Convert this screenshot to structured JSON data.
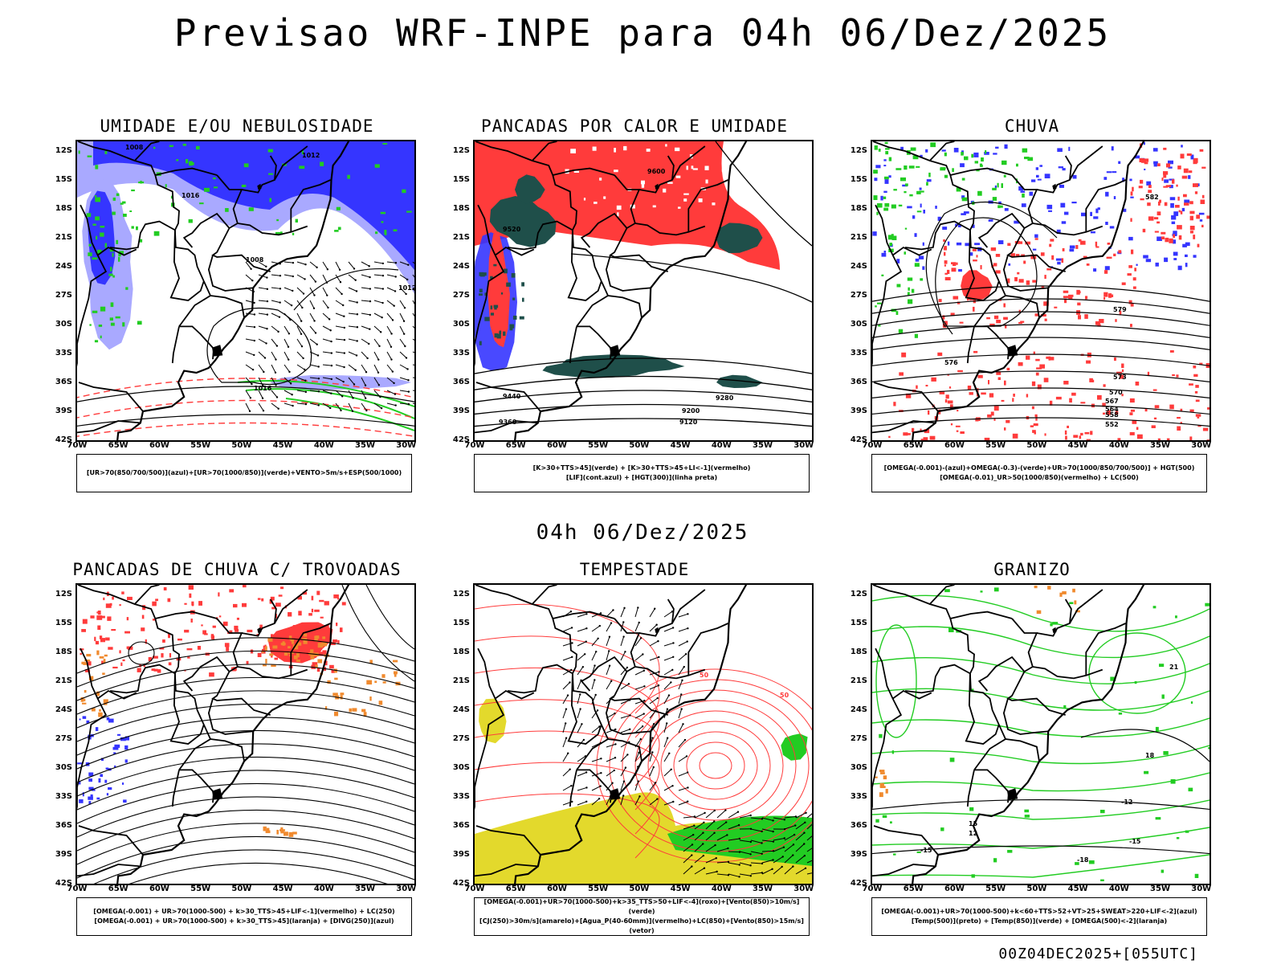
{
  "title": "Previsao WRF-INPE  para 04h 06/Dez/2025",
  "subtitle": "04h 06/Dez/2025",
  "footer": "00Z04DEC2025+[055UTC]",
  "lat_labels": [
    "12S",
    "15S",
    "18S",
    "21S",
    "24S",
    "27S",
    "30S",
    "33S",
    "36S",
    "39S",
    "42S"
  ],
  "lon_labels": [
    "70W",
    "65W",
    "60W",
    "55W",
    "50W",
    "45W",
    "40W",
    "35W",
    "30W"
  ],
  "colors": {
    "blue": "#3535ff",
    "lightblue": "#a9a9ff",
    "green": "#22cc22",
    "red": "#ff3b3b",
    "darkteal": "#1f4f4a",
    "orange": "#f08a2e",
    "yellow": "#e3d92c"
  },
  "panels": [
    {
      "title": "UMIDADE E/OU NEBULOSIDADE",
      "legend": [
        "[UR>70(850/700/500)](azul)+[UR>70(1000/850)](verde)+VENTO>5m/s+ESP(500/1000)"
      ],
      "contour_labels": [
        "1008",
        "1012",
        "1016",
        "1008",
        "1012",
        "1016"
      ]
    },
    {
      "title": "PANCADAS POR CALOR E UMIDADE",
      "legend": [
        "[K>30+TTS>45](verde) + [K>30+TTS>45+LI<-1](vermelho)",
        "[LIF](cont.azul) + [HGT(300)](linha preta)"
      ],
      "contour_labels": [
        "9600",
        "9520",
        "9440",
        "9360",
        "9280",
        "9200",
        "9120"
      ]
    },
    {
      "title": "CHUVA",
      "legend": [
        "[OMEGA(-0.001)-(azul)+OMEGA(-0.3)-(verde)+UR>70(1000/850/700/500)] + HGT(500)",
        "[OMEGA(-0.01)_UR>50(1000/850)(vermelho) + LC(500)"
      ],
      "contour_labels": [
        "582",
        "579",
        "576",
        "573",
        "570",
        "567",
        "564",
        "558",
        "552"
      ]
    },
    {
      "title": "PANCADAS DE CHUVA C/ TROVOADAS",
      "legend": [
        "[OMEGA(-0.001) + UR>70(1000-500) + k>30_TTS>45+LIF<-1](vermelho) + LC(250)",
        "[OMEGA(-0.001) + UR>70(1000-500) + k>30_TTS>45](laranja) + [DIVG(250)](azul)"
      ],
      "contour_labels": []
    },
    {
      "title": "TEMPESTADE",
      "legend": [
        "[OMEGA(-0.001)+UR>70(1000-500)+k>35_TTS>50+LIF<-4](roxo)+[Vento(850)>10m/s](verde)",
        "[CJ(250)>30m/s](amarelo)+[Agua_P(40-60mm)](vermelho)+LC(850)+[Vento(850)>15m/s](vetor)"
      ],
      "contour_labels": [
        "50",
        "50"
      ]
    },
    {
      "title": "GRANIZO",
      "legend": [
        "[OMEGA(-0.001)+UR>70(1000-500)+k<60+TTS>52+VT>25+SWEAT>220+LIF<-2](azul)",
        "[Temp(500)](preto) + [Temp(850)](verde) + [OMEGA(500)<-2](laranja)"
      ],
      "contour_labels": [
        "-12",
        "-15",
        "-18",
        "-15",
        "12",
        "15",
        "18",
        "21"
      ]
    }
  ]
}
